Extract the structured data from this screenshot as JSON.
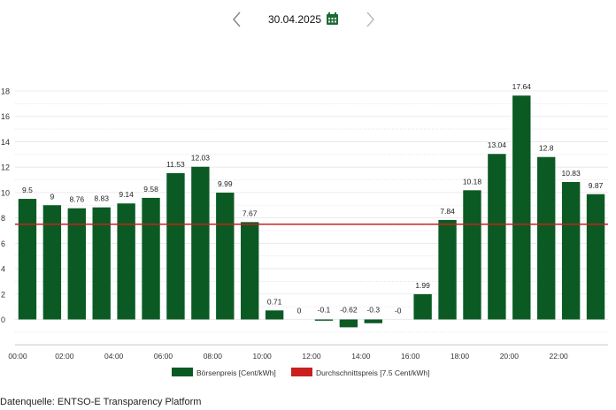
{
  "header": {
    "date": "30.04.2025",
    "prev_icon": "chevron-left-icon",
    "next_icon": "chevron-right-icon",
    "calendar_icon": "calendar-icon"
  },
  "chart_data": {
    "type": "bar",
    "title": "",
    "xlabel": "",
    "ylabel": "",
    "ylim": [
      -2,
      18
    ],
    "yticks": [
      0,
      2,
      4,
      6,
      8,
      10,
      12,
      14,
      16,
      18
    ],
    "categories": [
      "00:00",
      "01:00",
      "02:00",
      "03:00",
      "04:00",
      "05:00",
      "06:00",
      "07:00",
      "08:00",
      "09:00",
      "10:00",
      "11:00",
      "12:00",
      "13:00",
      "14:00",
      "15:00",
      "16:00",
      "17:00",
      "18:00",
      "19:00",
      "20:00",
      "21:00",
      "22:00",
      "23:00"
    ],
    "x_tick_labels": [
      "00:00",
      "02:00",
      "04:00",
      "06:00",
      "08:00",
      "10:00",
      "12:00",
      "14:00",
      "16:00",
      "18:00",
      "20:00",
      "22:00"
    ],
    "values": [
      9.5,
      9,
      8.76,
      8.83,
      9.14,
      9.58,
      11.53,
      12.03,
      9.99,
      7.67,
      0.71,
      0,
      -0.1,
      -0.62,
      -0.3,
      0,
      1.99,
      7.84,
      10.18,
      13.04,
      17.64,
      12.8,
      10.83,
      9.87
    ],
    "value_labels": [
      "9.5",
      "9",
      "8.76",
      "8.83",
      "9.14",
      "9.58",
      "11.53",
      "12.03",
      "9.99",
      "7.67",
      "0.71",
      "0",
      "-0.1",
      "-0.62",
      "-0.3",
      "-0",
      "1.99",
      "7.84",
      "10.18",
      "13.04",
      "17.64",
      "12.8",
      "10.83",
      "9.87"
    ],
    "average": 7.5,
    "grid": true,
    "legend_position": "bottom",
    "legend": [
      {
        "name": "Börsenpreis [Cent/kWh]",
        "color": "#0b5a24"
      },
      {
        "name": "Durchschnittspreis [7.5 Cent/kWh]",
        "color": "#c9201f"
      }
    ]
  },
  "colors": {
    "bar": "#0b5a24",
    "average": "#c9201f",
    "accent": "#1a6b33"
  },
  "footer": {
    "source": "Datenquelle: ENTSO-E Transparency Platform"
  }
}
